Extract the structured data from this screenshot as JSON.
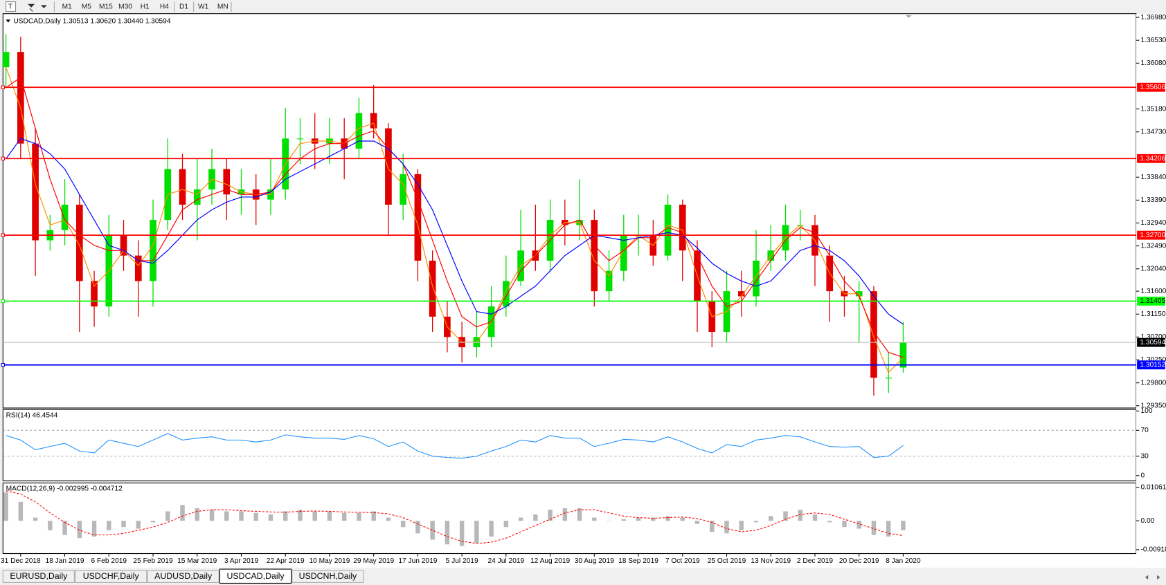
{
  "toolbar": {
    "timeframes": [
      "M1",
      "M5",
      "M15",
      "M30",
      "H1",
      "H4",
      "D1",
      "W1",
      "MN"
    ]
  },
  "tabs": [
    {
      "label": "EURUSD,Daily"
    },
    {
      "label": "USDCHF,Daily"
    },
    {
      "label": "AUDUSD,Daily"
    },
    {
      "label": "USDCAD,Daily",
      "active": true
    },
    {
      "label": "USDCNH,Daily"
    }
  ],
  "chart_data": [
    {
      "type": "candlestick",
      "symbol": "USDCAD,Daily",
      "ohlc_text": [
        "1.30513",
        "1.30620",
        "1.30440",
        "1.30594"
      ],
      "categories": [
        null,
        "31 Dec 2018",
        null,
        null,
        "18 Jan 2019",
        null,
        null,
        "6 Feb 2019",
        null,
        null,
        "25 Feb 2019",
        null,
        null,
        "15 Mar 2019",
        null,
        null,
        "3 Apr 2019",
        null,
        null,
        "22 Apr 2019",
        null,
        null,
        "10 May 2019",
        null,
        null,
        "29 May 2019",
        null,
        null,
        "17 Jun 2019",
        null,
        null,
        "5 Jul 2019",
        null,
        null,
        "24 Jul 2019",
        null,
        null,
        "12 Aug 2019",
        null,
        null,
        "30 Aug 2019",
        null,
        null,
        "18 Sep 2019",
        null,
        null,
        "7 Oct 2019",
        null,
        null,
        "25 Oct 2019",
        null,
        null,
        "13 Nov 2019",
        null,
        null,
        "2 Dec 2019",
        null,
        null,
        "20 Dec 2019",
        null,
        null,
        "8 Jan 2020"
      ],
      "open": [
        1.36,
        1.363,
        1.345,
        1.326,
        1.328,
        1.333,
        1.318,
        1.313,
        1.327,
        1.323,
        1.318,
        1.33,
        1.34,
        1.333,
        1.336,
        1.34,
        1.335,
        1.336,
        1.334,
        1.336,
        1.346,
        1.346,
        1.345,
        1.346,
        1.344,
        1.351,
        1.348,
        1.333,
        1.339,
        1.322,
        1.311,
        1.307,
        1.305,
        1.307,
        1.313,
        1.318,
        1.324,
        1.322,
        1.33,
        1.329,
        1.33,
        1.316,
        1.32,
        1.327,
        1.327,
        1.323,
        1.333,
        1.324,
        1.314,
        1.308,
        1.316,
        1.315,
        1.322,
        1.324,
        1.329,
        1.329,
        1.323,
        1.316,
        1.315,
        1.316,
        1.299,
        1.301
      ],
      "high": [
        1.3665,
        1.366,
        1.348,
        1.331,
        1.338,
        1.335,
        1.32,
        1.331,
        1.33,
        1.326,
        1.334,
        1.346,
        1.343,
        1.342,
        1.344,
        1.342,
        1.34,
        1.339,
        1.342,
        1.352,
        1.35,
        1.351,
        1.35,
        1.35,
        1.354,
        1.3565,
        1.349,
        1.343,
        1.34,
        1.324,
        1.314,
        1.31,
        1.312,
        1.317,
        1.323,
        1.332,
        1.333,
        1.334,
        1.334,
        1.338,
        1.332,
        1.324,
        1.331,
        1.331,
        1.33,
        1.335,
        1.334,
        1.326,
        1.316,
        1.32,
        1.32,
        1.328,
        1.329,
        1.333,
        1.332,
        1.331,
        1.325,
        1.319,
        1.318,
        1.317,
        1.304,
        1.31
      ],
      "low": [
        1.356,
        1.342,
        1.319,
        1.324,
        1.325,
        1.308,
        1.309,
        1.311,
        1.32,
        1.311,
        1.313,
        1.328,
        1.33,
        1.326,
        1.333,
        1.33,
        1.331,
        1.329,
        1.331,
        1.334,
        1.341,
        1.34,
        1.341,
        1.338,
        1.342,
        1.346,
        1.327,
        1.33,
        1.318,
        1.308,
        1.304,
        1.302,
        1.303,
        1.305,
        1.311,
        1.317,
        1.32,
        1.32,
        1.325,
        1.326,
        1.313,
        1.314,
        1.318,
        1.323,
        1.321,
        1.322,
        1.318,
        1.308,
        1.305,
        1.306,
        1.311,
        1.313,
        1.32,
        1.322,
        1.326,
        1.317,
        1.31,
        1.311,
        1.306,
        1.2955,
        1.296,
        1.3
      ],
      "close": [
        1.363,
        1.345,
        1.326,
        1.328,
        1.333,
        1.318,
        1.313,
        1.327,
        1.323,
        1.318,
        1.33,
        1.34,
        1.333,
        1.336,
        1.34,
        1.335,
        1.336,
        1.334,
        1.336,
        1.346,
        1.346,
        1.345,
        1.346,
        1.344,
        1.351,
        1.348,
        1.333,
        1.339,
        1.322,
        1.311,
        1.307,
        1.305,
        1.307,
        1.313,
        1.318,
        1.324,
        1.322,
        1.33,
        1.329,
        1.33,
        1.316,
        1.32,
        1.327,
        1.327,
        1.323,
        1.333,
        1.324,
        1.314,
        1.308,
        1.316,
        1.315,
        1.322,
        1.324,
        1.329,
        1.329,
        1.323,
        1.316,
        1.315,
        1.316,
        1.299,
        1.299,
        1.30594
      ],
      "up_color": "#00e000",
      "down_color": "#e00000",
      "lines": [
        {
          "color": "#ff8c00",
          "values": [
            1.36,
            1.352,
            1.337,
            1.329,
            1.33,
            1.325,
            1.317,
            1.32,
            1.324,
            1.321,
            1.325,
            1.335,
            1.336,
            1.335,
            1.338,
            1.337,
            1.3355,
            1.335,
            1.335,
            1.341,
            1.345,
            1.3455,
            1.3455,
            1.345,
            1.348,
            1.349,
            1.34,
            1.337,
            1.329,
            1.317,
            1.309,
            1.306,
            1.306,
            1.31,
            1.316,
            1.321,
            1.323,
            1.327,
            1.3295,
            1.3295,
            1.322,
            1.319,
            1.324,
            1.327,
            1.325,
            1.329,
            1.328,
            1.319,
            1.311,
            1.312,
            1.315,
            1.319,
            1.323,
            1.3265,
            1.329,
            1.326,
            1.3195,
            1.3155,
            1.3155,
            1.307,
            1.3,
            1.303
          ]
        },
        {
          "color": "#ff0000",
          "values": [
            1.356,
            1.358,
            1.348,
            1.338,
            1.33,
            1.327,
            1.325,
            1.324,
            1.324,
            1.322,
            1.322,
            1.327,
            1.332,
            1.334,
            1.335,
            1.336,
            1.335,
            1.335,
            1.3355,
            1.339,
            1.342,
            1.344,
            1.345,
            1.345,
            1.3465,
            1.3475,
            1.344,
            1.341,
            1.334,
            1.326,
            1.318,
            1.311,
            1.309,
            1.31,
            1.315,
            1.32,
            1.323,
            1.326,
            1.329,
            1.33,
            1.325,
            1.322,
            1.324,
            1.3265,
            1.3265,
            1.3285,
            1.3275,
            1.323,
            1.317,
            1.313,
            1.314,
            1.318,
            1.322,
            1.326,
            1.3285,
            1.3275,
            1.323,
            1.318,
            1.315,
            1.308,
            1.304,
            1.303
          ]
        },
        {
          "color": "#0000ff",
          "values": [
            1.342,
            1.346,
            1.345,
            1.343,
            1.34,
            1.335,
            1.33,
            1.325,
            1.324,
            1.322,
            1.3215,
            1.324,
            1.327,
            1.33,
            1.332,
            1.3335,
            1.3345,
            1.3345,
            1.3355,
            1.338,
            1.3395,
            1.341,
            1.3425,
            1.344,
            1.3455,
            1.3455,
            1.344,
            1.341,
            1.337,
            1.332,
            1.325,
            1.318,
            1.312,
            1.3115,
            1.313,
            1.315,
            1.317,
            1.32,
            1.323,
            1.325,
            1.327,
            1.3265,
            1.326,
            1.3265,
            1.327,
            1.3275,
            1.327,
            1.3245,
            1.3215,
            1.3195,
            1.318,
            1.317,
            1.318,
            1.321,
            1.324,
            1.325,
            1.324,
            1.322,
            1.319,
            1.315,
            1.3115,
            1.3095
          ]
        }
      ],
      "levels": [
        {
          "value": 1.35606,
          "label": "1.35606",
          "color": "#ff0000"
        },
        {
          "value": 1.34206,
          "label": "1.34206",
          "color": "#ff0000"
        },
        {
          "value": 1.327,
          "label": "1.32700",
          "color": "#ff0000"
        },
        {
          "value": 1.31405,
          "label": "1.31405",
          "color": "#00ff00"
        },
        {
          "value": 1.30152,
          "label": "1.30152",
          "color": "#0000ff"
        }
      ],
      "current_price": {
        "value": 1.30594,
        "label": "1.30594"
      },
      "ylim": [
        1.29306,
        1.37053
      ],
      "yticks": [
        {
          "value": 1.3698,
          "label": "1.36980"
        },
        {
          "value": 1.3653,
          "label": "1.36530"
        },
        {
          "value": 1.3608,
          "label": "1.36080"
        },
        {
          "value": 1.3518,
          "label": "1.35180"
        },
        {
          "value": 1.3473,
          "label": "1.34730"
        },
        {
          "value": 1.3384,
          "label": "1.33840"
        },
        {
          "value": 1.3339,
          "label": "1.33390"
        },
        {
          "value": 1.3294,
          "label": "1.32940"
        },
        {
          "value": 1.3249,
          "label": "1.32490"
        },
        {
          "value": 1.3204,
          "label": "1.32040"
        },
        {
          "value": 1.316,
          "label": "1.31600"
        },
        {
          "value": 1.3115,
          "label": "1.31150"
        },
        {
          "value": 1.307,
          "label": "1.30700"
        },
        {
          "value": 1.3025,
          "label": "1.30250"
        },
        {
          "value": 1.298,
          "label": "1.29800"
        },
        {
          "value": 1.2935,
          "label": "1.29350"
        }
      ]
    },
    {
      "type": "line",
      "label": "RSI(14) 46.4544",
      "color": "#1e90ff",
      "values": [
        62,
        55,
        40,
        45,
        50,
        38,
        35,
        55,
        50,
        45,
        55,
        65,
        55,
        58,
        60,
        55,
        55,
        52,
        55,
        63,
        60,
        58,
        58,
        56,
        62,
        57,
        45,
        52,
        38,
        30,
        28,
        27,
        30,
        38,
        45,
        55,
        52,
        62,
        58,
        58,
        45,
        50,
        56,
        55,
        52,
        60,
        52,
        42,
        35,
        48,
        45,
        55,
        58,
        62,
        60,
        52,
        45,
        44,
        45,
        28,
        30,
        46.4544
      ],
      "levels": [
        70,
        30
      ],
      "ylim": [
        -8,
        102.3
      ],
      "yticks": [
        100,
        70,
        30,
        0
      ]
    },
    {
      "type": "macd",
      "label": "MACD(12,26,9) -0.002995 -0.004712",
      "histogram_color": "#b8b8b8",
      "signal_color": "#ff0000",
      "histogram": [
        0.009,
        0.006,
        0.001,
        -0.003,
        -0.0045,
        -0.0055,
        -0.005,
        -0.003,
        -0.002,
        -0.0025,
        -0.0005,
        0.003,
        0.005,
        0.004,
        0.0035,
        0.003,
        0.003,
        0.0025,
        0.002,
        0.003,
        0.0035,
        0.003,
        0.003,
        0.0025,
        0.0025,
        0.003,
        0.001,
        -0.002,
        -0.004,
        -0.006,
        -0.0075,
        -0.008,
        -0.007,
        -0.005,
        -0.002,
        0.001,
        0.002,
        0.0035,
        0.004,
        0.004,
        0.001,
        0.0,
        0.0005,
        0.001,
        0.001,
        0.0015,
        0.001,
        -0.001,
        -0.0035,
        -0.004,
        -0.003,
        -0.0005,
        0.0015,
        0.003,
        0.0035,
        0.002,
        -0.0005,
        -0.002,
        -0.0025,
        -0.0045,
        -0.005,
        -0.002995
      ],
      "signal": [
        0.0095,
        0.0085,
        0.006,
        0.0025,
        -0.0005,
        -0.003,
        -0.0045,
        -0.0045,
        -0.004,
        -0.003,
        -0.002,
        -0.0005,
        0.0015,
        0.003,
        0.0035,
        0.0035,
        0.0032,
        0.003,
        0.0028,
        0.0027,
        0.003,
        0.0031,
        0.003,
        0.0028,
        0.0027,
        0.0026,
        0.0022,
        0.001,
        -0.001,
        -0.003,
        -0.005,
        -0.0065,
        -0.0072,
        -0.0068,
        -0.0055,
        -0.0035,
        -0.0015,
        0.0005,
        0.0025,
        0.0035,
        0.0035,
        0.0025,
        0.0015,
        0.001,
        0.0008,
        0.001,
        0.0012,
        0.0007,
        -0.0005,
        -0.0025,
        -0.0035,
        -0.003,
        -0.0015,
        0.0005,
        0.002,
        0.0025,
        0.002,
        0.0005,
        -0.001,
        -0.0025,
        -0.004,
        -0.004712
      ],
      "ylim": [
        -0.0104,
        0.012
      ],
      "yticks": [
        0.010615,
        {
          "value": 0,
          "label": "0.00"
        },
        -0.009181
      ]
    }
  ]
}
